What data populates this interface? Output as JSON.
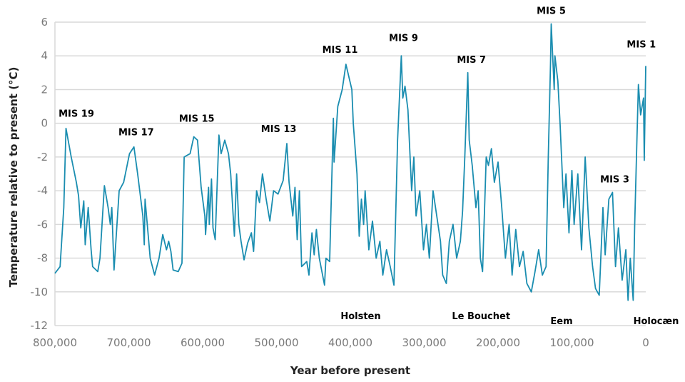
{
  "chart_data": {
    "type": "line",
    "title": "",
    "xlabel": "Year before present",
    "ylabel": "Temperature relative to present (°C)",
    "xlim": [
      800000,
      0
    ],
    "ylim": [
      -12,
      6
    ],
    "grid": true,
    "line_color": "#1a8db0",
    "x_ticks": [
      800000,
      700000,
      600000,
      500000,
      400000,
      300000,
      200000,
      100000,
      0
    ],
    "x_tick_labels": [
      "800,000",
      "700,000",
      "600,000",
      "500,000",
      "400,000",
      "300,000",
      "200,000",
      "100,000",
      "0"
    ],
    "y_ticks": [
      6,
      4,
      2,
      0,
      -2,
      -4,
      -6,
      -8,
      -10,
      -12
    ],
    "y_tick_labels": [
      "6",
      "4",
      "2",
      "0",
      "-2",
      "-4",
      "-6",
      "-8",
      "-10",
      "-12"
    ],
    "series": [
      {
        "name": "Temperature",
        "points": [
          [
            800000,
            -8.9
          ],
          [
            793000,
            -8.5
          ],
          [
            788000,
            -5
          ],
          [
            785000,
            -0.3
          ],
          [
            778000,
            -2
          ],
          [
            771000,
            -3.5
          ],
          [
            768000,
            -4.3
          ],
          [
            765000,
            -6.2
          ],
          [
            761000,
            -4.6
          ],
          [
            759000,
            -7.2
          ],
          [
            755000,
            -5
          ],
          [
            751000,
            -7.5
          ],
          [
            749000,
            -8.5
          ],
          [
            742000,
            -8.8
          ],
          [
            739000,
            -8
          ],
          [
            733000,
            -3.7
          ],
          [
            728000,
            -5
          ],
          [
            725000,
            -6
          ],
          [
            723000,
            -5
          ],
          [
            720000,
            -8.7
          ],
          [
            713000,
            -4
          ],
          [
            707000,
            -3.5
          ],
          [
            699000,
            -1.8
          ],
          [
            693000,
            -1.4
          ],
          [
            688000,
            -3
          ],
          [
            681000,
            -5.5
          ],
          [
            679000,
            -7.2
          ],
          [
            678000,
            -4.5
          ],
          [
            675000,
            -6
          ],
          [
            671000,
            -8
          ],
          [
            665000,
            -9
          ],
          [
            659000,
            -8
          ],
          [
            654000,
            -6.6
          ],
          [
            649000,
            -7.5
          ],
          [
            646000,
            -7
          ],
          [
            643000,
            -7.6
          ],
          [
            640000,
            -8.7
          ],
          [
            633000,
            -8.8
          ],
          [
            628000,
            -8.3
          ],
          [
            625000,
            -2
          ],
          [
            617000,
            -1.8
          ],
          [
            612000,
            -0.8
          ],
          [
            607000,
            -1
          ],
          [
            602000,
            -3.8
          ],
          [
            597000,
            -5.5
          ],
          [
            596000,
            -6.6
          ],
          [
            592000,
            -3.8
          ],
          [
            591000,
            -6
          ],
          [
            588000,
            -3.3
          ],
          [
            586000,
            -6.2
          ],
          [
            583000,
            -6.9
          ],
          [
            578000,
            -0.7
          ],
          [
            575000,
            -1.8
          ],
          [
            570000,
            -1
          ],
          [
            565000,
            -1.8
          ],
          [
            562000,
            -3
          ],
          [
            557000,
            -6.7
          ],
          [
            554000,
            -3
          ],
          [
            551000,
            -6
          ],
          [
            548000,
            -7
          ],
          [
            544000,
            -8.1
          ],
          [
            539000,
            -7.1
          ],
          [
            534000,
            -6.5
          ],
          [
            531000,
            -7.6
          ],
          [
            527000,
            -4
          ],
          [
            523000,
            -4.7
          ],
          [
            519000,
            -3
          ],
          [
            514000,
            -4.5
          ],
          [
            509000,
            -5.8
          ],
          [
            504000,
            -4
          ],
          [
            498000,
            -4.2
          ],
          [
            491000,
            -3.4
          ],
          [
            486000,
            -1.2
          ],
          [
            483000,
            -3.5
          ],
          [
            478000,
            -5.5
          ],
          [
            475000,
            -3.8
          ],
          [
            472000,
            -6.9
          ],
          [
            469000,
            -4
          ],
          [
            466000,
            -8.5
          ],
          [
            459000,
            -8.2
          ],
          [
            456000,
            -9
          ],
          [
            452000,
            -6.5
          ],
          [
            449000,
            -7.8
          ],
          [
            446000,
            -6.3
          ],
          [
            442000,
            -8
          ],
          [
            435000,
            -9.6
          ],
          [
            433000,
            -8
          ],
          [
            428000,
            -8.2
          ],
          [
            423000,
            0.3
          ],
          [
            422000,
            -2.3
          ],
          [
            417000,
            1
          ],
          [
            411000,
            2
          ],
          [
            406000,
            3.5
          ],
          [
            398000,
            2
          ],
          [
            396000,
            0
          ],
          [
            391000,
            -3
          ],
          [
            388000,
            -6.7
          ],
          [
            385000,
            -4.5
          ],
          [
            382000,
            -6
          ],
          [
            380000,
            -4
          ],
          [
            375000,
            -7.5
          ],
          [
            370000,
            -5.8
          ],
          [
            365000,
            -8
          ],
          [
            360000,
            -7
          ],
          [
            356000,
            -9
          ],
          [
            351000,
            -7.5
          ],
          [
            346000,
            -8.5
          ],
          [
            341000,
            -9.6
          ],
          [
            336000,
            -1
          ],
          [
            331000,
            4
          ],
          [
            329000,
            1.5
          ],
          [
            326000,
            2.2
          ],
          [
            322000,
            0.8
          ],
          [
            317000,
            -4
          ],
          [
            314000,
            -2
          ],
          [
            311000,
            -5.5
          ],
          [
            306000,
            -4
          ],
          [
            301000,
            -7.5
          ],
          [
            297000,
            -6
          ],
          [
            293000,
            -8
          ],
          [
            288000,
            -4
          ],
          [
            283000,
            -5.5
          ],
          [
            278000,
            -7
          ],
          [
            275000,
            -9
          ],
          [
            270000,
            -9.5
          ],
          [
            266000,
            -7
          ],
          [
            261000,
            -6
          ],
          [
            256000,
            -8
          ],
          [
            251000,
            -7
          ],
          [
            248000,
            -5.2
          ],
          [
            245000,
            -2
          ],
          [
            241000,
            3
          ],
          [
            239000,
            -1
          ],
          [
            235000,
            -2.5
          ],
          [
            230000,
            -5
          ],
          [
            227000,
            -4
          ],
          [
            224000,
            -8
          ],
          [
            221000,
            -8.8
          ],
          [
            216000,
            -2
          ],
          [
            213000,
            -2.5
          ],
          [
            209000,
            -1.5
          ],
          [
            205000,
            -3.5
          ],
          [
            200000,
            -2.3
          ],
          [
            195000,
            -5
          ],
          [
            190000,
            -8
          ],
          [
            185000,
            -6
          ],
          [
            181000,
            -9
          ],
          [
            176000,
            -6.3
          ],
          [
            171000,
            -8.5
          ],
          [
            166000,
            -7.6
          ],
          [
            161000,
            -9.5
          ],
          [
            155000,
            -10
          ],
          [
            150000,
            -8.8
          ],
          [
            145000,
            -7.5
          ],
          [
            140000,
            -9
          ],
          [
            135000,
            -8.5
          ],
          [
            132000,
            -2
          ],
          [
            129000,
            3.5
          ],
          [
            128000,
            5.9
          ],
          [
            124000,
            2
          ],
          [
            123000,
            4
          ],
          [
            119000,
            2.5
          ],
          [
            116000,
            0
          ],
          [
            111000,
            -5
          ],
          [
            108000,
            -3
          ],
          [
            104000,
            -6.5
          ],
          [
            100000,
            -2.8
          ],
          [
            97000,
            -6
          ],
          [
            92000,
            -3
          ],
          [
            87000,
            -7.5
          ],
          [
            82000,
            -2
          ],
          [
            77000,
            -6.2
          ],
          [
            72000,
            -8.5
          ],
          [
            68000,
            -9.8
          ],
          [
            63000,
            -10.2
          ],
          [
            58000,
            -5
          ],
          [
            55000,
            -7.8
          ],
          [
            50000,
            -4.5
          ],
          [
            45000,
            -4.1
          ],
          [
            41000,
            -8.5
          ],
          [
            37000,
            -6.2
          ],
          [
            32000,
            -9.3
          ],
          [
            27000,
            -7.5
          ],
          [
            24000,
            -10.5
          ],
          [
            21000,
            -8
          ],
          [
            17000,
            -10.5
          ],
          [
            15000,
            -6
          ],
          [
            12000,
            -1
          ],
          [
            10000,
            2.3
          ],
          [
            7000,
            0.5
          ],
          [
            3000,
            1.5
          ],
          [
            2000,
            -2.2
          ],
          [
            0,
            3.4
          ]
        ]
      }
    ],
    "annotations": [
      {
        "text": "MIS 19",
        "x": 771000,
        "y": 0.6
      },
      {
        "text": "MIS 17",
        "x": 690000,
        "y": -0.5
      },
      {
        "text": "MIS 15",
        "x": 608000,
        "y": 0.3
      },
      {
        "text": "MIS 13",
        "x": 497000,
        "y": -0.3
      },
      {
        "text": "MIS 11",
        "x": 414000,
        "y": 4.4
      },
      {
        "text": "MIS 9",
        "x": 328000,
        "y": 5.1
      },
      {
        "text": "MIS 7",
        "x": 236000,
        "y": 3.8
      },
      {
        "text": "MIS 5",
        "x": 128000,
        "y": 6.7
      },
      {
        "text": "MIS 3",
        "x": 42000,
        "y": -3.3
      },
      {
        "text": "MIS 1",
        "x": 6000,
        "y": 4.7
      },
      {
        "text": "Holsten",
        "x": 386000,
        "y": -11.4
      },
      {
        "text": "Le Bouchet",
        "x": 223000,
        "y": -11.4
      },
      {
        "text": "Eem",
        "x": 114000,
        "y": -11.7
      },
      {
        "text": "Holocæn",
        "x": -14000,
        "y": -11.7
      }
    ]
  }
}
